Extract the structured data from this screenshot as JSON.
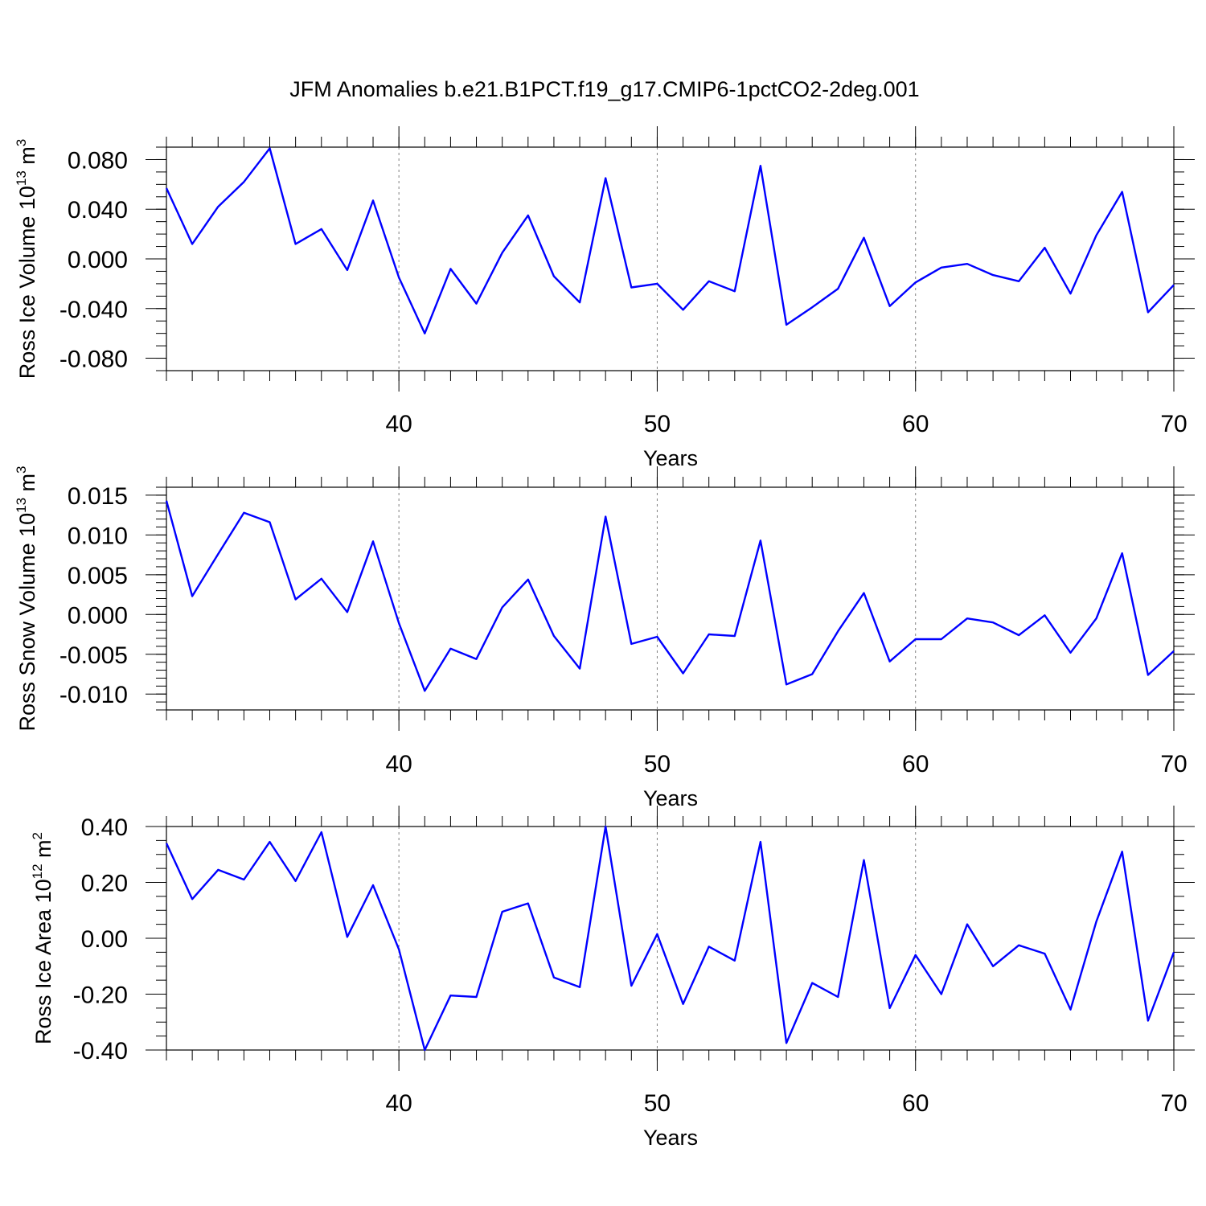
{
  "chart_data": {
    "title": "JFM Anomalies b.e21.B1PCT.f19_g17.CMIP6-1pctCO2-2deg.001",
    "series_color": "#0000ff",
    "panels": [
      {
        "type": "line",
        "ylabel": "Ross Ice Volume",
        "units": {
          "base": "10",
          "exp": "13",
          "unit": "m",
          "unit_exp": "3"
        },
        "xlabel": "Years",
        "xlim": [
          31,
          70
        ],
        "ylim": [
          -0.09,
          0.09
        ],
        "y_ticks": [
          0.08,
          0.04,
          0.0,
          -0.04,
          -0.08
        ],
        "y_tick_labels": [
          "0.080",
          "0.040",
          "0.000",
          "-0.040",
          "-0.080"
        ],
        "y_minor_step": 0.01,
        "x_ticks": [
          40,
          50,
          60,
          70
        ],
        "x_tick_labels": [
          "40",
          "50",
          "60",
          "70"
        ],
        "x_gridlines": [
          40,
          50,
          60
        ],
        "x": [
          31,
          32,
          33,
          34,
          35,
          36,
          37,
          38,
          39,
          40,
          41,
          42,
          43,
          44,
          45,
          46,
          47,
          48,
          49,
          50,
          51,
          52,
          53,
          54,
          55,
          56,
          57,
          58,
          59,
          60,
          61,
          62,
          63,
          64,
          65,
          66,
          67,
          68,
          69,
          70
        ],
        "y": [
          0.057,
          0.012,
          0.042,
          0.062,
          0.089,
          0.012,
          0.024,
          -0.009,
          0.047,
          -0.015,
          -0.06,
          -0.008,
          -0.036,
          0.005,
          0.035,
          -0.014,
          -0.035,
          0.065,
          -0.023,
          -0.02,
          -0.041,
          -0.018,
          -0.026,
          0.075,
          -0.053,
          -0.039,
          -0.024,
          0.017,
          -0.038,
          -0.019,
          -0.007,
          -0.004,
          -0.013,
          -0.018,
          0.009,
          -0.028,
          0.019,
          0.054,
          -0.043,
          -0.021
        ]
      },
      {
        "type": "line",
        "ylabel": "Ross Snow Volume",
        "units": {
          "base": "10",
          "exp": "13",
          "unit": "m",
          "unit_exp": "3"
        },
        "xlabel": "Years",
        "xlim": [
          31,
          70
        ],
        "ylim": [
          -0.012,
          0.016
        ],
        "y_ticks": [
          0.015,
          0.01,
          0.005,
          0.0,
          -0.005,
          -0.01
        ],
        "y_tick_labels": [
          "0.015",
          "0.010",
          "0.005",
          "0.000",
          "-0.005",
          "-0.010"
        ],
        "y_minor_step": 0.001,
        "x_ticks": [
          40,
          50,
          60,
          70
        ],
        "x_tick_labels": [
          "40",
          "50",
          "60",
          "70"
        ],
        "x_gridlines": [
          40,
          50,
          60
        ],
        "x": [
          31,
          32,
          33,
          34,
          35,
          36,
          37,
          38,
          39,
          40,
          41,
          42,
          43,
          44,
          45,
          46,
          47,
          48,
          49,
          50,
          51,
          52,
          53,
          54,
          55,
          56,
          57,
          58,
          59,
          60,
          61,
          62,
          63,
          64,
          65,
          66,
          67,
          68,
          69,
          70
        ],
        "y": [
          0.0143,
          0.0023,
          0.0076,
          0.0128,
          0.0116,
          0.0019,
          0.0045,
          0.0003,
          0.0092,
          -0.0011,
          -0.0096,
          -0.0043,
          -0.0056,
          0.0009,
          0.0044,
          -0.0027,
          -0.0068,
          0.0123,
          -0.0037,
          -0.0028,
          -0.0074,
          -0.0025,
          -0.0027,
          0.0093,
          -0.0088,
          -0.0075,
          -0.0021,
          0.0027,
          -0.0059,
          -0.0031,
          -0.0031,
          -0.0005,
          -0.001,
          -0.0026,
          -0.0001,
          -0.0048,
          -0.0005,
          0.0077,
          -0.0076,
          -0.0046
        ]
      },
      {
        "type": "line",
        "ylabel": "Ross Ice Area",
        "units": {
          "base": "10",
          "exp": "12",
          "unit": "m",
          "unit_exp": "2"
        },
        "xlabel": "Years",
        "xlim": [
          31,
          70
        ],
        "ylim": [
          -0.4,
          0.4
        ],
        "y_ticks": [
          0.4,
          0.2,
          0.0,
          -0.2,
          -0.4
        ],
        "y_tick_labels": [
          "0.40",
          "0.20",
          "0.00",
          "-0.20",
          "-0.40"
        ],
        "y_minor_step": 0.05,
        "x_ticks": [
          40,
          50,
          60,
          70
        ],
        "x_tick_labels": [
          "40",
          "50",
          "60",
          "70"
        ],
        "x_gridlines": [
          40,
          50,
          60
        ],
        "x": [
          31,
          32,
          33,
          34,
          35,
          36,
          37,
          38,
          39,
          40,
          41,
          42,
          43,
          44,
          45,
          46,
          47,
          48,
          49,
          50,
          51,
          52,
          53,
          54,
          55,
          56,
          57,
          58,
          59,
          60,
          61,
          62,
          63,
          64,
          65,
          66,
          67,
          68,
          69,
          70
        ],
        "y": [
          0.34,
          0.14,
          0.245,
          0.21,
          0.345,
          0.205,
          0.38,
          0.005,
          0.19,
          -0.04,
          -0.4,
          -0.205,
          -0.21,
          0.095,
          0.125,
          -0.14,
          -0.175,
          0.4,
          -0.17,
          0.015,
          -0.235,
          -0.03,
          -0.08,
          0.345,
          -0.375,
          -0.16,
          -0.21,
          0.28,
          -0.25,
          -0.06,
          -0.2,
          0.05,
          -0.1,
          -0.025,
          -0.055,
          -0.255,
          0.06,
          0.31,
          -0.295,
          -0.05
        ]
      }
    ]
  }
}
